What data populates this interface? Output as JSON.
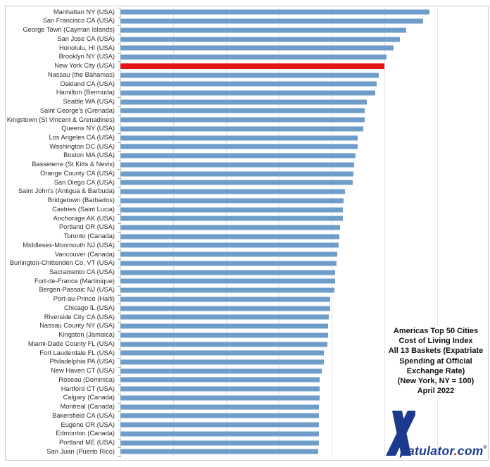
{
  "chart_data": {
    "type": "bar",
    "orientation": "horizontal",
    "title_lines": [
      "Americas Top 50 Cities",
      "Cost of Living Index",
      "All 13 Baskets (Expatriate",
      "Spending at Official",
      "Exchange Rate)",
      "(New York, NY = 100)",
      "April 2022"
    ],
    "categories": [
      "Manhattan NY (USA)",
      "San Francisco CA (USA)",
      "George Town (Cayman Islands)",
      "San Jose CA (USA)",
      "Honolulu, HI (USA)",
      "Brooklyn NY (USA)",
      "New York City (USA)",
      "Nassau (the Bahamas)",
      "Oakland CA (USA)",
      "Hamilton (Bermuda)",
      "Seattle WA (USA)",
      "Saint George's (Grenada)",
      "Kingstown (St Vincent & Grenadines)",
      "Queens NY (USA)",
      "Los Angeles CA (USA)",
      "Washington DC (USA)",
      "Boston MA (USA)",
      "Basseterre (St Kitts & Nevis)",
      "Orange County CA (USA)",
      "San Diego CA (USA)",
      "Saint John's (Antigua & Barbuda)",
      "Bridgetown (Barbados)",
      "Castries (Saint Lucia)",
      "Anchorage AK (USA)",
      "Portland OR (USA)",
      "Toronto (Canada)",
      "Middlesex-Monmouth NJ (USA)",
      "Vancouver (Canada)",
      "Burlington-Chittenden Co, VT (USA)",
      "Sacramento CA (USA)",
      "Fort-de-France (Martinique)",
      "Bergen-Passaic NJ (USA)",
      "Port-au-Prince (Haiti)",
      "Chicago IL (USA)",
      "Riverside City CA (USA)",
      "Nassau County NY (USA)",
      "Kingston (Jamaica)",
      "Miami-Dade County FL (USA)",
      "Fort Lauderdale FL (USA)",
      "Philadelphia PA (USA)",
      "New Haven CT (USA)",
      "Roseau (Dominica)",
      "Hartford CT (USA)",
      "Calgary (Canada)",
      "Montreal (Canada)",
      "Bakersfield CA (USA)",
      "Eugene OR (USA)",
      "Edmonton (Canada)",
      "Portland ME (USA)",
      "San Juan (Puerto Rico)"
    ],
    "values": [
      117,
      114.7,
      108.3,
      106,
      103.6,
      100.9,
      100,
      98,
      97.2,
      96.6,
      93.5,
      92.7,
      92.5,
      92,
      90,
      89.9,
      89.1,
      88.7,
      88.3,
      88,
      85.1,
      84.6,
      84.4,
      84.4,
      83.3,
      83,
      82.7,
      82.1,
      81.9,
      81.4,
      81.3,
      81.1,
      79.5,
      79.4,
      78.9,
      78.7,
      78.7,
      78.4,
      77.2,
      77,
      76.3,
      75.6,
      75.4,
      75.4,
      75.3,
      75.3,
      75.2,
      75.2,
      75.2,
      75.1
    ],
    "highlight_index": 6,
    "highlight_category": "New York City (USA)",
    "xlim": [
      0,
      139
    ],
    "gridline_values": [
      20,
      40,
      60,
      80,
      100,
      120
    ],
    "bar_color": "#6d9dc8",
    "highlight_color": "#e41414",
    "gridline_color": "#e3e3e3",
    "grid": "vertical",
    "legend": "none"
  },
  "branding": {
    "logo_x_glyph": "X",
    "logo_text_1": "patulator",
    "logo_dot": ".",
    "logo_text_2": "com",
    "logo_reg": "®",
    "logo_color": "#1c3a8e",
    "dot_color": "#e41414"
  }
}
